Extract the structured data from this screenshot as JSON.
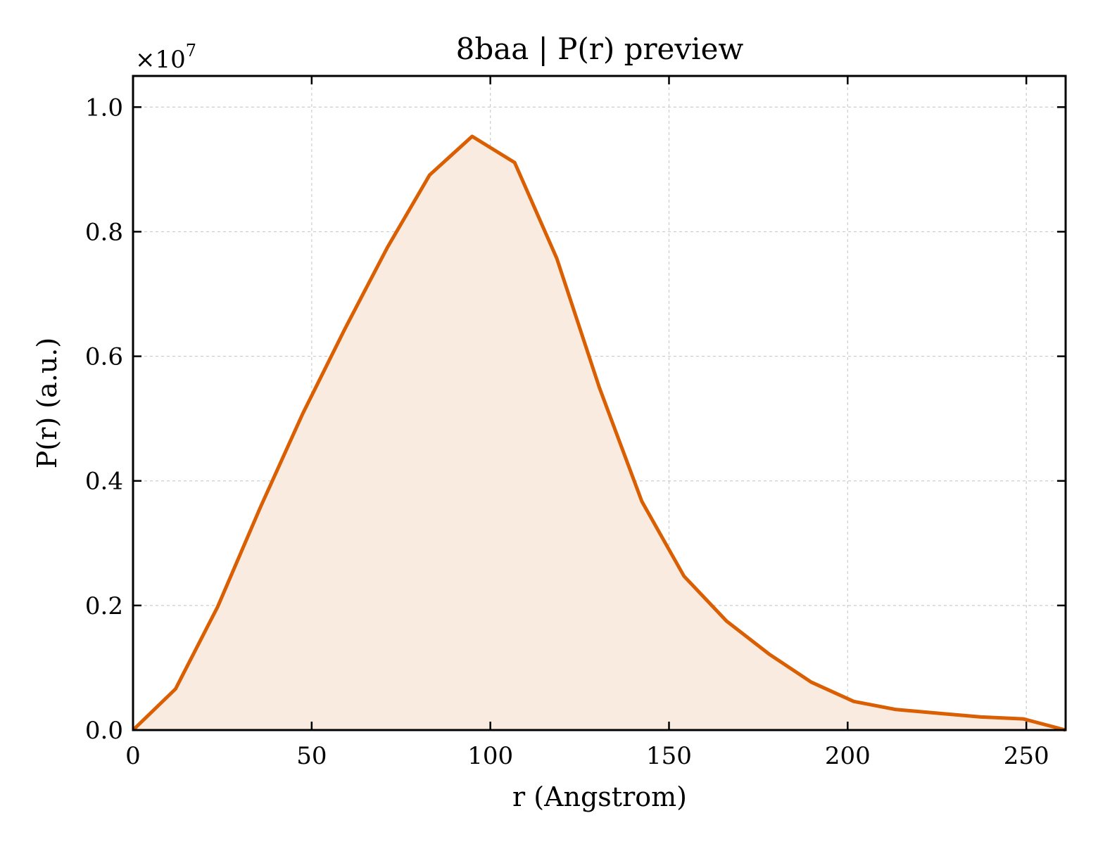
{
  "chart_data": {
    "type": "area",
    "title": "8baa | P(r) preview",
    "xlabel": "r (Angstrom)",
    "ylabel": "P(r) (a.u.)",
    "y_scale_label": "×10",
    "y_scale_exponent": "7",
    "xlim": [
      0,
      261
    ],
    "ylim": [
      0,
      1.05
    ],
    "xticks": [
      0,
      50,
      100,
      150,
      200,
      250
    ],
    "xtick_labels": [
      "0",
      "50",
      "100",
      "150",
      "200",
      "250"
    ],
    "yticks": [
      0.0,
      0.2,
      0.4,
      0.6,
      0.8,
      1.0
    ],
    "ytick_labels": [
      "0.0",
      "0.2",
      "0.4",
      "0.6",
      "0.8",
      "1.0"
    ],
    "grid": true,
    "series": [
      {
        "line_color": "#d95f02",
        "fill_color": "#faebe0",
        "x": [
          0,
          11.9,
          23.7,
          35.6,
          47.5,
          59.3,
          71.2,
          83.0,
          94.9,
          106.8,
          118.6,
          130.5,
          142.4,
          154.2,
          166.1,
          178.0,
          189.8,
          201.7,
          213.5,
          225.4,
          237.3,
          249.1,
          261.0
        ],
        "y": [
          0.0,
          0.066,
          0.198,
          0.357,
          0.508,
          0.644,
          0.775,
          0.891,
          0.953,
          0.911,
          0.757,
          0.55,
          0.367,
          0.247,
          0.175,
          0.122,
          0.077,
          0.046,
          0.033,
          0.027,
          0.021,
          0.018,
          0.0
        ]
      }
    ]
  }
}
